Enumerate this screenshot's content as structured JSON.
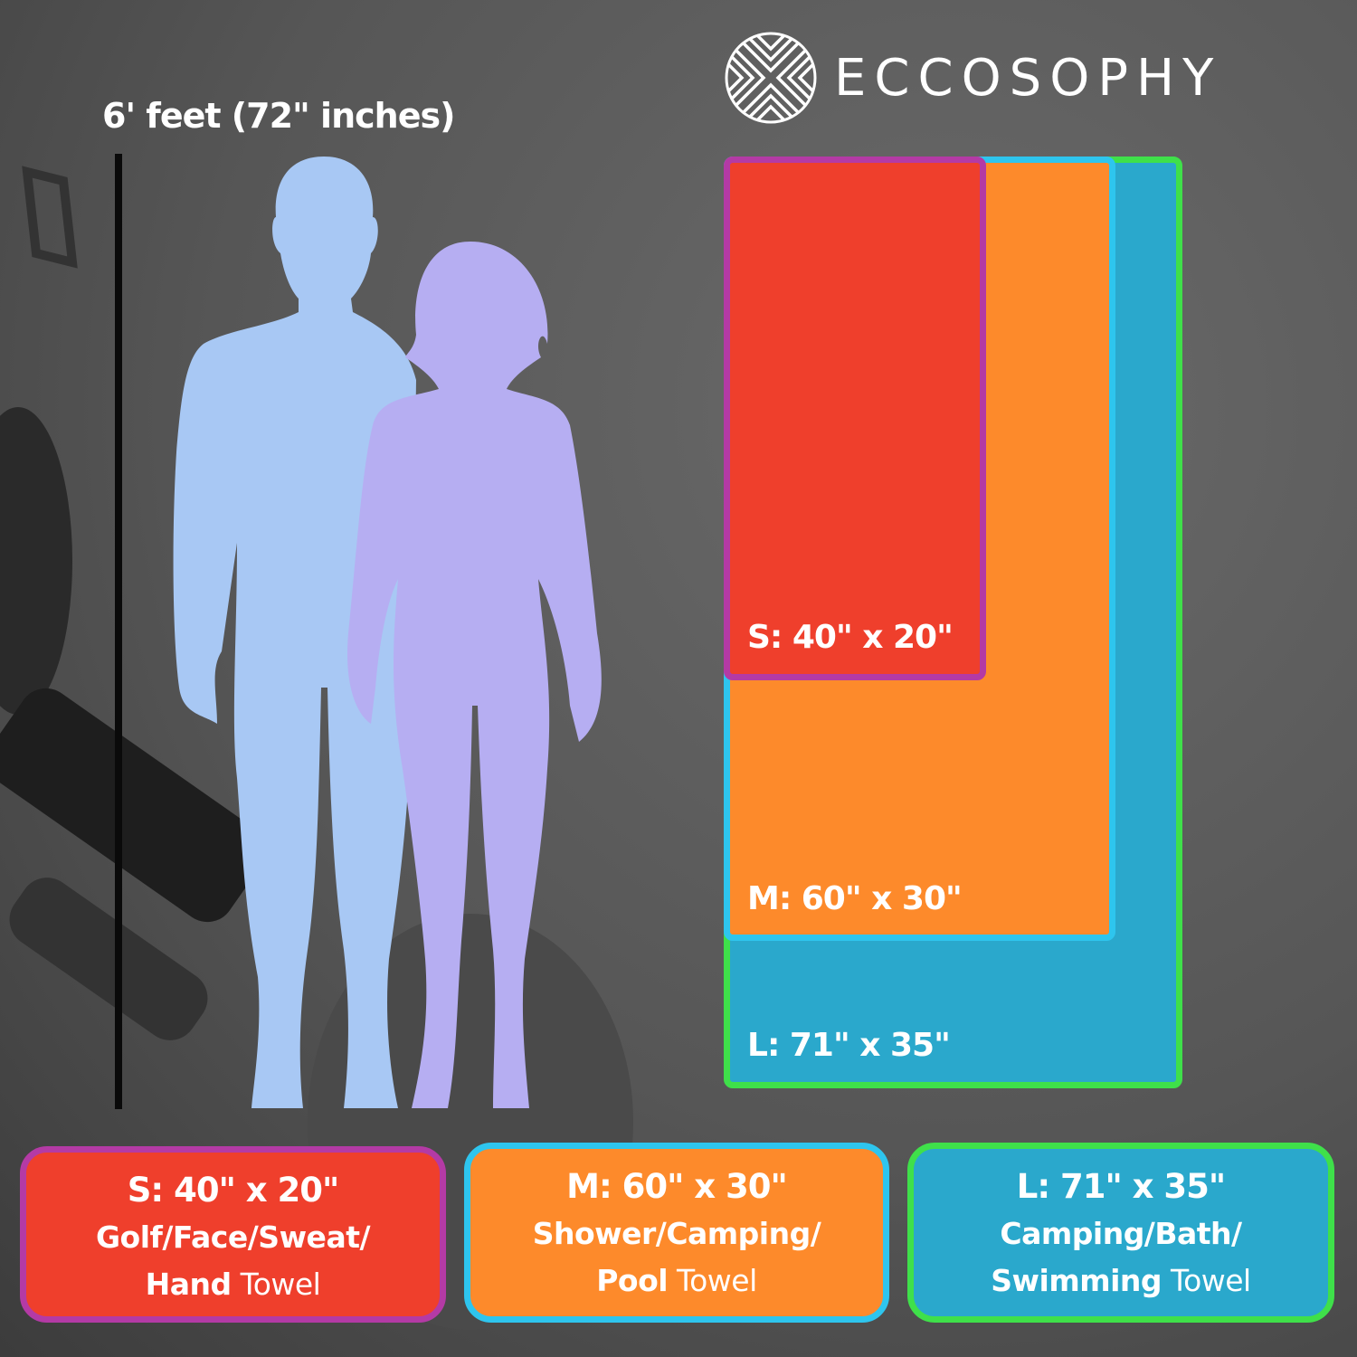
{
  "height_reference": {
    "label": "6' feet (72\" inches)"
  },
  "brand": {
    "name": "ECCOSOPHY",
    "logo_icon": "woven-circle-logo-icon"
  },
  "colors": {
    "small_fill": "#ef3f2c",
    "small_border": "#b43aa5",
    "medium_fill": "#fd8a2b",
    "medium_border": "#2ec5ee",
    "large_fill": "#2aa8cc",
    "large_border": "#3fe04a",
    "man_silhouette": "#a8c8f4",
    "woman_silhouette": "#b6aef2"
  },
  "towels": {
    "small": {
      "label": "S: 40\" x 20\""
    },
    "medium": {
      "label": "M: 60\" x 30\""
    },
    "large": {
      "label": "L: 71\" x 35\""
    }
  },
  "cards": [
    {
      "size": "S: 40\" x 20\"",
      "use_line1": "Golf/Face/Sweat/",
      "use_bold": "Hand",
      "use_suffix": " Towel"
    },
    {
      "size": "M: 60\" x 30\"",
      "use_line1": "Shower/Camping/",
      "use_bold": "Pool",
      "use_suffix": " Towel"
    },
    {
      "size": "L: 71\" x 35\"",
      "use_line1": "Camping/Bath/",
      "use_bold": "Swimming",
      "use_suffix": " Towel"
    }
  ]
}
